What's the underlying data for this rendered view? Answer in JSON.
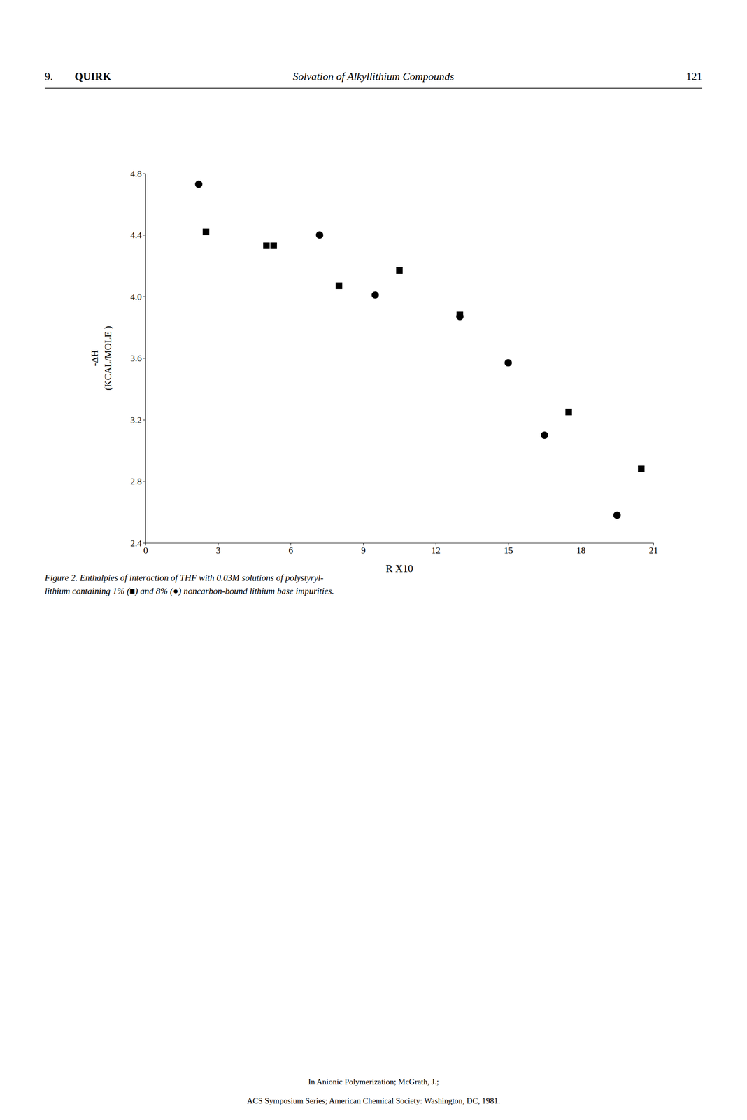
{
  "chart_data": {
    "type": "scatter",
    "xlabel": "R X10",
    "ylabel": [
      "-ΔH",
      "(KCAL/MOLE )"
    ],
    "annotations": [
      "9.",
      "QUIRK",
      "Solvation of Alkyllithium Compounds",
      "121",
      "Figure 2.   Enthalpies of interaction of THF with 0.03M solutions of polystyryl-",
      "lithium containing 1% (■) and 8% (●) noncarbon-bound lithium base impurities.",
      "In Anionic Polymerization; McGrath, J.;",
      "ACS Symposium Series; American Chemical Society: Washington, DC, 1981."
    ],
    "series": [
      {
        "marker": "square",
        "color": "#000000",
        "x": [
          2.5,
          5.0,
          5.3,
          8.0,
          10.5,
          13.0,
          17.5,
          20.5
        ],
        "values": [
          4.42,
          4.33,
          4.33,
          4.07,
          4.17,
          3.88,
          3.25,
          2.88
        ]
      },
      {
        "marker": "circle",
        "color": "#000000",
        "x": [
          2.2,
          7.2,
          9.5,
          13.0,
          15.0,
          16.5,
          19.5
        ],
        "values": [
          4.73,
          4.4,
          4.01,
          3.87,
          3.57,
          3.1,
          2.58
        ]
      }
    ],
    "xlim": [
      0,
      21
    ],
    "ylim": [
      2.4,
      4.8
    ],
    "xticks": [
      0,
      3,
      6,
      9,
      12,
      15,
      18,
      21
    ],
    "yticks": [
      2.4,
      2.8,
      3.2,
      3.6,
      {
        "value": 4.0,
        "label": "4.0"
      },
      4.4,
      4.8
    ],
    "grid": false
  }
}
